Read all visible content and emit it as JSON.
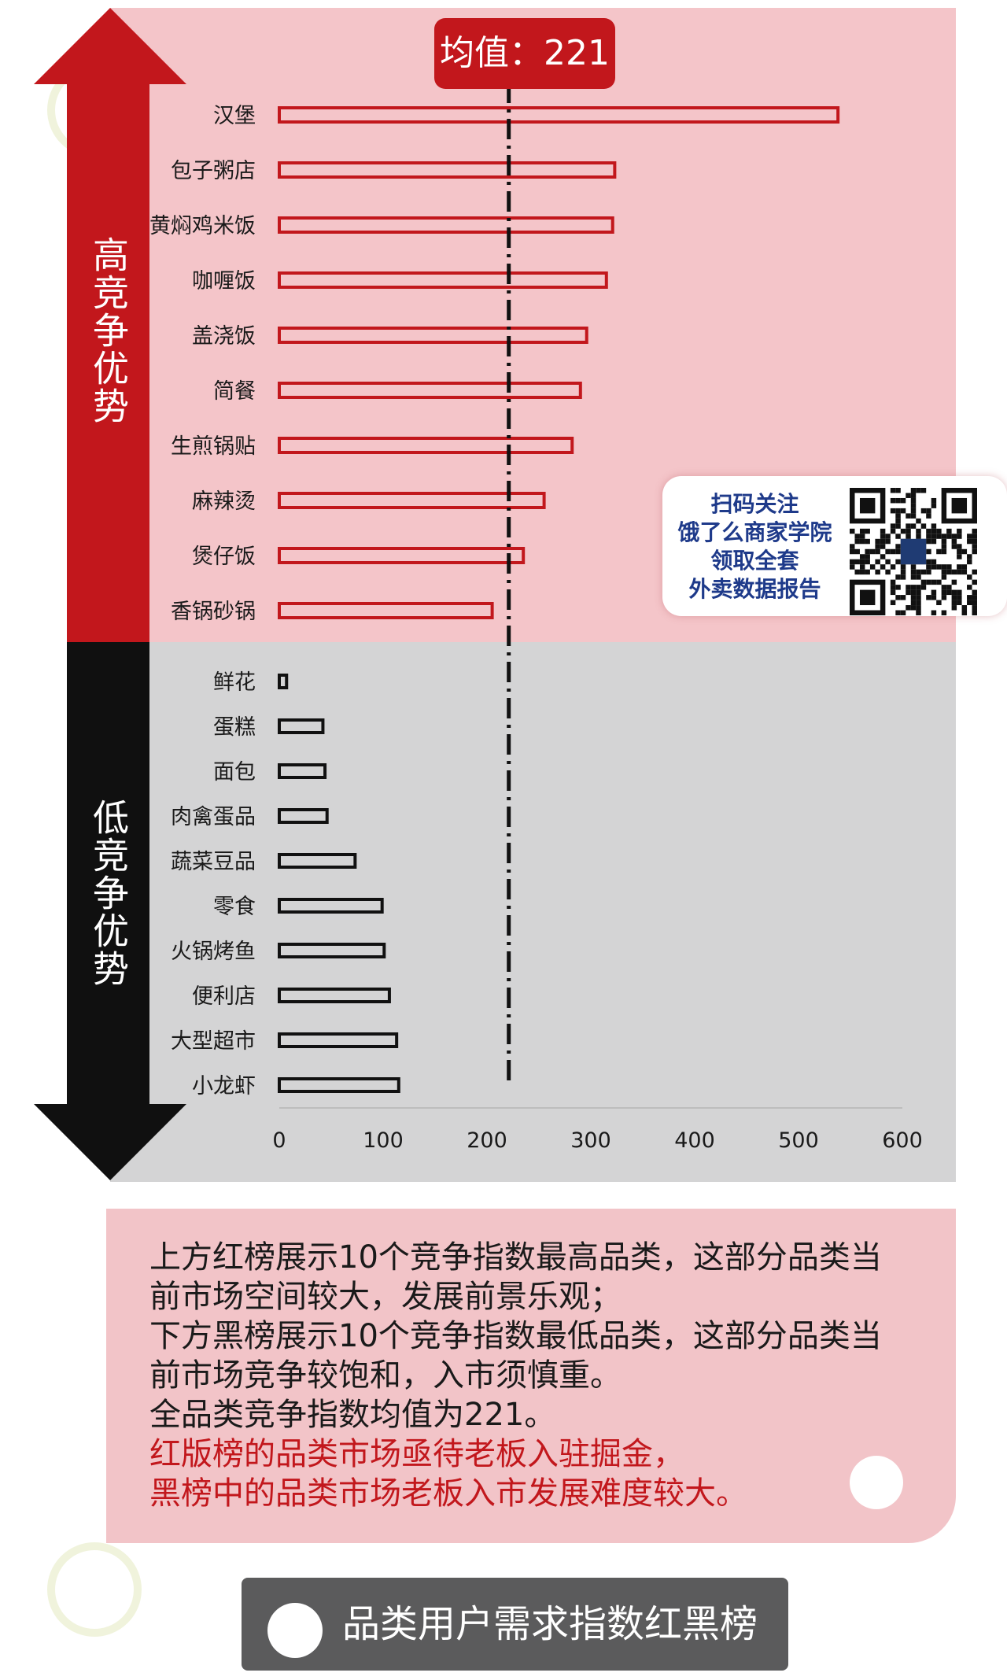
{
  "chart_data": {
    "type": "bar",
    "orientation": "horizontal",
    "title": "",
    "mean_label": "均值：221",
    "mean_value": 221,
    "xlim": [
      0,
      600
    ],
    "x_ticks": [
      "0",
      "100",
      "200",
      "300",
      "400",
      "500",
      "600"
    ],
    "grid": false,
    "groups": [
      {
        "name": "高竞争优势",
        "color": "#c2171c",
        "categories": [
          "汉堡",
          "包子粥店",
          "黄焖鸡米饭",
          "咖喱饭",
          "盖浇饭",
          "简餐",
          "生煎锅贴",
          "麻辣烫",
          "煲仔饭",
          "香锅砂锅"
        ],
        "values": [
          538,
          323,
          321,
          315,
          296,
          290,
          282,
          255,
          235,
          205
        ]
      },
      {
        "name": "低竞争优势",
        "color": "#111111",
        "categories": [
          "鲜花",
          "蛋糕",
          "面包",
          "肉禽蛋品",
          "蔬菜豆品",
          "零食",
          "火锅烤鱼",
          "便利店",
          "大型超市",
          "小龙虾"
        ],
        "values": [
          7,
          42,
          44,
          46,
          73,
          99,
          101,
          106,
          113,
          115
        ]
      }
    ]
  },
  "colors": {
    "red": "#c2171c",
    "black": "#111111",
    "panel_red": "#f4c5c9",
    "panel_grey": "#d4d4d5",
    "qr_text": "#1e3a8a"
  },
  "qr_promo": {
    "lines": [
      "扫码关注",
      "饿了么商家学院",
      "领取全套",
      "外卖数据报告"
    ],
    "icon": "qr-code-icon"
  },
  "note": {
    "black_lines": [
      "上方红榜展示10个竞争指数最高品类，这部分品类当",
      "前市场空间较大，发展前景乐观；",
      "下方黑榜展示10个竞争指数最低品类，这部分品类当",
      "前市场竞争较饱和，入市须慎重。",
      "全品类竞争指数均值为221。"
    ],
    "red_lines": [
      "红版榜的品类市场亟待老板入驻掘金，",
      "黑榜中的品类市场老板入市发展难度较大。"
    ]
  },
  "footer": {
    "title": "品类用户需求指数红黑榜"
  }
}
